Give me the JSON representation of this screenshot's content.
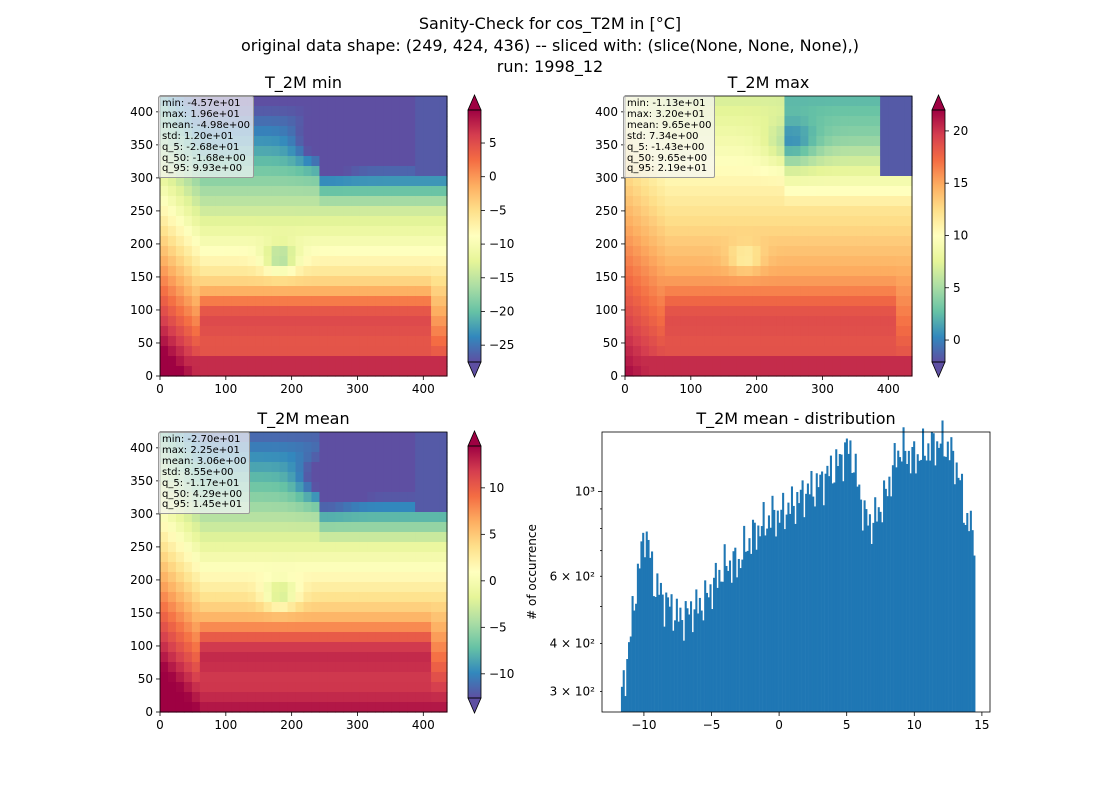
{
  "figure": {
    "title_line1": "Sanity-Check for cos_T2M in [°C]",
    "title_line2": "original data shape: (249, 424, 436) -- sliced with: (slice(None, None, None),)",
    "title_line3": "run: 1998_12"
  },
  "colormap": "Spectral_r",
  "chart_data": [
    {
      "type": "heatmap",
      "title": "T_2M min",
      "xlim": [
        0,
        436
      ],
      "ylim": [
        0,
        424
      ],
      "xticks": [
        0,
        100,
        200,
        300,
        400
      ],
      "yticks": [
        0,
        50,
        100,
        150,
        200,
        250,
        300,
        350,
        400
      ],
      "colorbar": {
        "ticks": [
          5,
          0,
          -5,
          -10,
          -15,
          -20,
          -25
        ],
        "range": [
          -27.5,
          9.9
        ],
        "extend": "both"
      },
      "stats": [
        "min: -4.57e+01",
        "max: 1.96e+01",
        "mean: -4.98e+00",
        "std: 1.20e+01",
        "q_5: -2.68e+01",
        "q_50: -1.68e+00",
        "q_95: 9.93e+00"
      ]
    },
    {
      "type": "heatmap",
      "title": "T_2M max",
      "xlim": [
        0,
        436
      ],
      "ylim": [
        0,
        424
      ],
      "xticks": [
        0,
        100,
        200,
        300,
        400
      ],
      "yticks": [
        0,
        50,
        100,
        150,
        200,
        250,
        300,
        350,
        400
      ],
      "colorbar": {
        "ticks": [
          20,
          15,
          10,
          5,
          0
        ],
        "range": [
          -2.1,
          22.0
        ],
        "extend": "both"
      },
      "stats": [
        "min: -1.13e+01",
        "max: 3.20e+01",
        "mean: 9.65e+00",
        "std: 7.34e+00",
        "q_5: -1.43e+00",
        "q_50: 9.65e+00",
        "q_95: 2.19e+01"
      ]
    },
    {
      "type": "heatmap",
      "title": "T_2M mean",
      "xlim": [
        0,
        436
      ],
      "ylim": [
        0,
        424
      ],
      "xticks": [
        0,
        100,
        200,
        300,
        400
      ],
      "yticks": [
        0,
        50,
        100,
        150,
        200,
        250,
        300,
        350,
        400
      ],
      "colorbar": {
        "ticks": [
          10,
          5,
          0,
          -5,
          -10
        ],
        "range": [
          -12.6,
          14.5
        ],
        "extend": "both"
      },
      "stats": [
        "min: -2.70e+01",
        "max: 2.25e+01",
        "mean: 3.06e+00",
        "std: 8.55e+00",
        "q_5: -1.17e+01",
        "q_50: 4.29e+00",
        "q_95: 1.45e+01"
      ]
    },
    {
      "type": "bar",
      "title": "T_2M mean - distribution",
      "ylabel": "# of occurrence",
      "xlabel": "",
      "xlim": [
        -13.1,
        15.6
      ],
      "ylim": [
        265,
        1430
      ],
      "log_y": true,
      "xticks": [
        -10,
        -5,
        0,
        5,
        10,
        15
      ],
      "yticks": [
        {
          "value": 300,
          "label": "3 × 10²"
        },
        {
          "value": 400,
          "label": "4 × 10²"
        },
        {
          "value": 600,
          "label": "6 × 10²"
        },
        {
          "value": 1000,
          "label": "10³"
        }
      ],
      "bin_range": [
        -11.7,
        14.5
      ],
      "profile": [
        [
          -11.7,
          280
        ],
        [
          -11.4,
          330
        ],
        [
          -11.0,
          420
        ],
        [
          -10.6,
          560
        ],
        [
          -10.2,
          690
        ],
        [
          -9.9,
          800
        ],
        [
          -9.6,
          700
        ],
        [
          -9.3,
          590
        ],
        [
          -9.0,
          560
        ],
        [
          -8.5,
          520
        ],
        [
          -8.0,
          500
        ],
        [
          -7.5,
          470
        ],
        [
          -7.0,
          470
        ],
        [
          -6.5,
          490
        ],
        [
          -6.0,
          500
        ],
        [
          -5.5,
          520
        ],
        [
          -5.0,
          560
        ],
        [
          -4.5,
          600
        ],
        [
          -4.0,
          640
        ],
        [
          -3.5,
          650
        ],
        [
          -3.0,
          650
        ],
        [
          -2.5,
          720
        ],
        [
          -2.0,
          760
        ],
        [
          -1.5,
          800
        ],
        [
          -1.0,
          830
        ],
        [
          -0.5,
          870
        ],
        [
          0.0,
          860
        ],
        [
          0.5,
          900
        ],
        [
          1.0,
          920
        ],
        [
          1.5,
          960
        ],
        [
          2.0,
          1000
        ],
        [
          2.5,
          1020
        ],
        [
          3.0,
          1050
        ],
        [
          3.5,
          1100
        ],
        [
          4.0,
          1150
        ],
        [
          4.5,
          1200
        ],
        [
          5.0,
          1300
        ],
        [
          5.4,
          1250
        ],
        [
          5.8,
          1050
        ],
        [
          6.3,
          870
        ],
        [
          6.8,
          820
        ],
        [
          7.3,
          880
        ],
        [
          7.8,
          960
        ],
        [
          8.3,
          1100
        ],
        [
          8.7,
          1250
        ],
        [
          9.1,
          1300
        ],
        [
          9.5,
          1250
        ],
        [
          10.0,
          1220
        ],
        [
          10.5,
          1260
        ],
        [
          11.0,
          1300
        ],
        [
          11.5,
          1320
        ],
        [
          12.0,
          1350
        ],
        [
          12.5,
          1300
        ],
        [
          13.0,
          1200
        ],
        [
          13.4,
          1050
        ],
        [
          13.8,
          850
        ],
        [
          14.2,
          800
        ],
        [
          14.5,
          780
        ]
      ]
    }
  ]
}
